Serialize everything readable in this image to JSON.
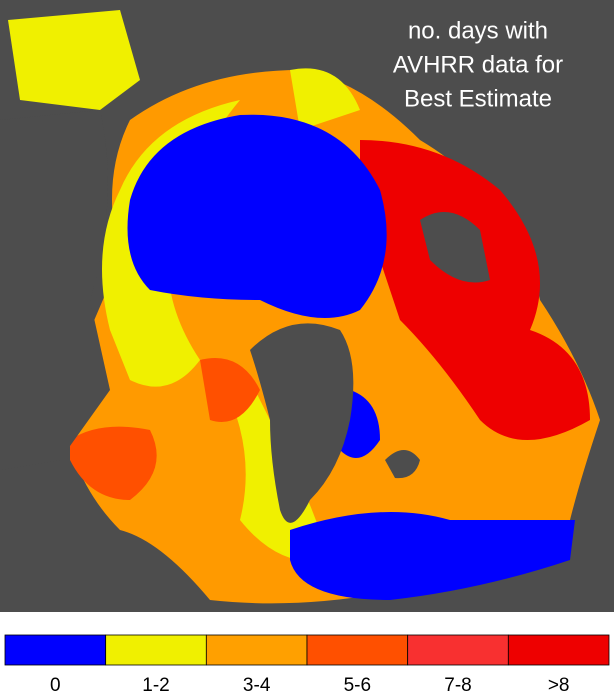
{
  "title": [
    "no. days with",
    "AVHRR data for",
    "Best Estimate"
  ],
  "legend": [
    {
      "label": "0",
      "color": "#0000ff"
    },
    {
      "label": "1-2",
      "color": "#f0f000"
    },
    {
      "label": "3-4",
      "color": "#ffa000"
    },
    {
      "label": "5-6",
      "color": "#ff5000"
    },
    {
      "label": "7-8",
      "color": "#f83030"
    },
    {
      "label": ">8",
      "color": "#ee0000"
    }
  ]
}
